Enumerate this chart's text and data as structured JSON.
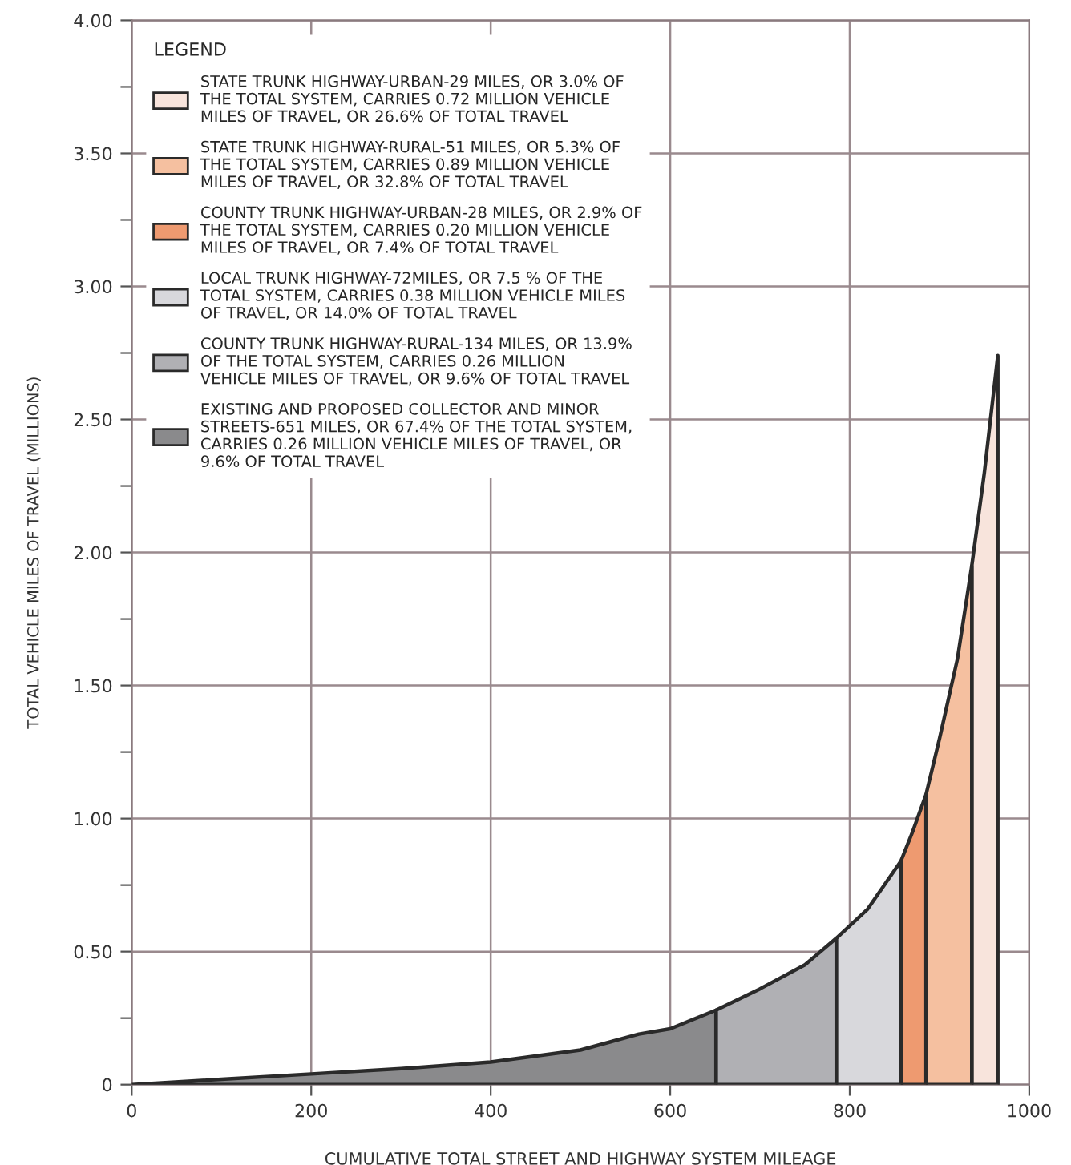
{
  "chart_data": {
    "type": "area",
    "xlabel": "CUMULATIVE TOTAL STREET AND HIGHWAY SYSTEM MILEAGE",
    "ylabel": "TOTAL VEHICLE MILES OF TRAVEL (MILLIONS)",
    "legend_title": "LEGEND",
    "legend": "top left",
    "grid": true,
    "xlim": [
      0,
      1000
    ],
    "xticks": [
      0,
      200,
      400,
      600,
      800,
      1000
    ],
    "ylim": [
      0,
      4
    ],
    "yticks": [
      0,
      {
        "value": 0.25,
        "label": null
      },
      {
        "value": 0.5,
        "label": "0.50"
      },
      {
        "value": 0.75,
        "label": null
      },
      {
        "value": 1,
        "label": "1.00"
      },
      {
        "value": 1.25,
        "label": null
      },
      {
        "value": 1.5,
        "label": "1.50"
      },
      {
        "value": 1.75,
        "label": null
      },
      {
        "value": 2,
        "label": "2.00"
      },
      {
        "value": 2.25,
        "label": null
      },
      {
        "value": 2.5,
        "label": "2.50"
      },
      {
        "value": 2.75,
        "label": null
      },
      {
        "value": 3,
        "label": "3.00"
      },
      {
        "value": 3.25,
        "label": null
      },
      {
        "value": 3.5,
        "label": "3.50"
      },
      {
        "value": 3.75,
        "label": null
      },
      {
        "value": 4,
        "label": "4.00"
      }
    ],
    "series": [
      {
        "name": "STATE TRUNK HIGHWAY-URBAN-29 MILES, OR 3.0% OF THE TOTAL SYSTEM, CARRIES 0.72 MILLION VEHICLE MILES OF TRAVEL, OR 26.6% OF TOTAL TRAVEL",
        "color": "#f8e4dc",
        "x": [
          936,
          950,
          965
        ],
        "values": [
          1.95,
          2.3,
          2.74
        ]
      },
      {
        "name": "STATE TRUNK HIGHWAY-RURAL-51 MILES, OR 5.3% OF THE TOTAL SYSTEM, CARRIES 0.89 MILLION VEHICLE MILES OF TRAVEL, OR 32.8% OF TOTAL TRAVEL",
        "color": "#f5c0a0",
        "x": [
          885,
          900,
          920,
          936
        ],
        "values": [
          1.09,
          1.3,
          1.6,
          1.95
        ]
      },
      {
        "name": "COUNTY TRUNK HIGHWAY-URBAN-28 MILES, OR 2.9% OF THE TOTAL SYSTEM, CARRIES 0.20 MILLION VEHICLE MILES OF TRAVEL, OR 7.4% OF TOTAL TRAVEL",
        "color": "#ee9a70",
        "x": [
          857,
          870,
          885
        ],
        "values": [
          0.84,
          0.95,
          1.09
        ]
      },
      {
        "name": "LOCAL TRUNK HIGHWAY-72MILES, OR 7.5 % OF THE TOTAL SYSTEM, CARRIES 0.38 MILLION VEHICLE MILES OF TRAVEL, OR 14.0% OF TOTAL TRAVEL",
        "color": "#d8d8dc",
        "x": [
          785,
          820,
          857
        ],
        "values": [
          0.55,
          0.66,
          0.84
        ]
      },
      {
        "name": "COUNTY TRUNK HIGHWAY-RURAL-134 MILES, OR 13.9% OF THE TOTAL SYSTEM, CARRIES 0.26 MILLION VEHICLE MILES OF TRAVEL, OR 9.6% OF TOTAL TRAVEL",
        "color": "#b0b0b4",
        "x": [
          651,
          700,
          750,
          785
        ],
        "values": [
          0.28,
          0.36,
          0.45,
          0.55
        ]
      },
      {
        "name": "EXISTING AND PROPOSED COLLECTOR AND MINOR STREETS-651 MILES, OR 67.4% OF THE TOTAL SYSTEM, CARRIES 0.26 MILLION VEHICLE MILES OF TRAVEL, OR 9.6% OF TOTAL TRAVEL",
        "color": "#8a8a8c",
        "x": [
          0,
          100,
          200,
          300,
          400,
          500,
          565,
          600,
          651
        ],
        "values": [
          0,
          0.02,
          0.04,
          0.06,
          0.085,
          0.13,
          0.19,
          0.21,
          0.28
        ]
      }
    ]
  }
}
